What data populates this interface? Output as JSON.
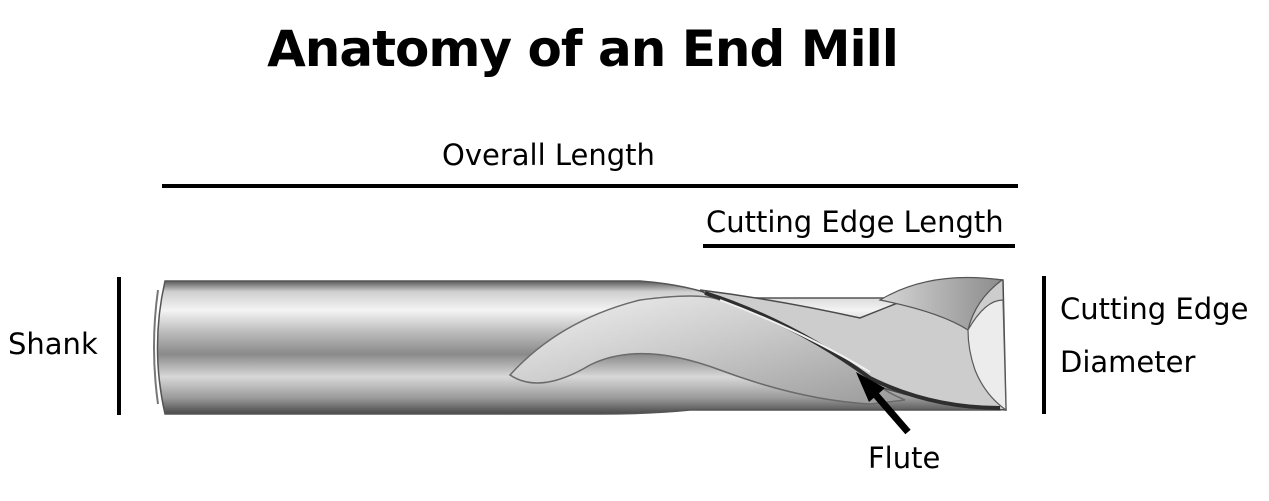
{
  "title": "Anatomy of an End Mill",
  "labels": {
    "overall_length": "Overall Length",
    "cutting_edge_length": "Cutting Edge Length",
    "shank": "Shank",
    "cutting_edge": "Cutting Edge",
    "diameter": "Diameter",
    "flute": "Flute"
  }
}
